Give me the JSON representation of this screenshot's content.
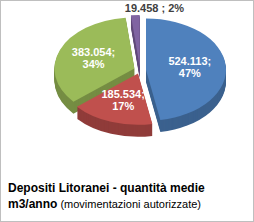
{
  "chart_data": {
    "type": "pie",
    "title": "Depositi Litoranei - quantità medie\nm3/anno (movimentazioni autorizzate)",
    "values": [
      524113,
      185534,
      383054,
      19458
    ],
    "value_labels": [
      "524.113;\n47%",
      "185.534;\n17%",
      "383.054;\n34%",
      "19.458 ; 2%"
    ],
    "colors": [
      "#4f81bd",
      "#c0504d",
      "#9bbb59",
      "#8064a2"
    ],
    "data_labels": true
  }
}
